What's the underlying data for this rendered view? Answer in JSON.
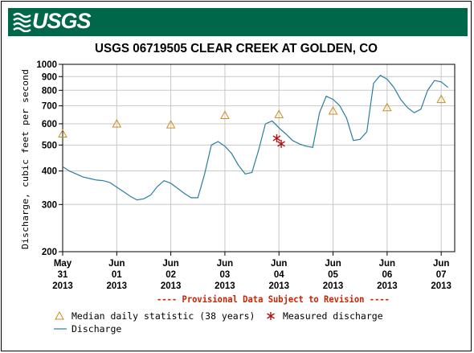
{
  "header": {
    "logo_text": "USGS",
    "banner_color": "#00684a"
  },
  "chart_data": {
    "type": "line",
    "title": "USGS 06719505 CLEAR CREEK AT GOLDEN, CO",
    "ylabel": "Discharge, cubic feet per second",
    "xlabel": "",
    "y_scale": "log",
    "ylim": [
      200,
      1000
    ],
    "y_ticks": [
      200,
      300,
      400,
      500,
      600,
      700,
      800,
      900,
      1000
    ],
    "y_tick_labels": [
      "200",
      "300",
      "400",
      "500",
      "600",
      "700",
      "800",
      "900",
      "1000"
    ],
    "xlim": [
      "2013-05-31 00:00",
      "2013-06-07 06:00"
    ],
    "x_ticks": [
      {
        "date": "2013-05-31",
        "label": [
          "May",
          "31",
          "2013"
        ]
      },
      {
        "date": "2013-06-01",
        "label": [
          "Jun",
          "01",
          "2013"
        ]
      },
      {
        "date": "2013-06-02",
        "label": [
          "Jun",
          "02",
          "2013"
        ]
      },
      {
        "date": "2013-06-03",
        "label": [
          "Jun",
          "03",
          "2013"
        ]
      },
      {
        "date": "2013-06-04",
        "label": [
          "Jun",
          "04",
          "2013"
        ]
      },
      {
        "date": "2013-06-05",
        "label": [
          "Jun",
          "05",
          "2013"
        ]
      },
      {
        "date": "2013-06-06",
        "label": [
          "Jun",
          "06",
          "2013"
        ]
      },
      {
        "date": "2013-06-07",
        "label": [
          "Jun",
          "07",
          "2013"
        ]
      }
    ],
    "grid": true,
    "provisional_note": "---- Provisional Data Subject to Revision ----",
    "colors": {
      "discharge": "#2a7ea0",
      "median": "#d08a20",
      "measured": "#b01010",
      "note": "#cc2200"
    },
    "series": [
      {
        "name": "Discharge",
        "type": "line",
        "points": [
          [
            "2013-05-30 21:00",
            430
          ],
          [
            "2013-05-31 00:00",
            415
          ],
          [
            "2013-05-31 03:00",
            400
          ],
          [
            "2013-05-31 06:00",
            390
          ],
          [
            "2013-05-31 09:00",
            380
          ],
          [
            "2013-05-31 12:00",
            375
          ],
          [
            "2013-05-31 15:00",
            370
          ],
          [
            "2013-05-31 18:00",
            368
          ],
          [
            "2013-05-31 21:00",
            362
          ],
          [
            "2013-06-01 00:00",
            348
          ],
          [
            "2013-06-01 03:00",
            335
          ],
          [
            "2013-06-01 06:00",
            322
          ],
          [
            "2013-06-01 09:00",
            312
          ],
          [
            "2013-06-01 12:00",
            315
          ],
          [
            "2013-06-01 15:00",
            325
          ],
          [
            "2013-06-01 18:00",
            350
          ],
          [
            "2013-06-01 21:00",
            368
          ],
          [
            "2013-06-02 00:00",
            360
          ],
          [
            "2013-06-02 03:00",
            345
          ],
          [
            "2013-06-02 06:00",
            330
          ],
          [
            "2013-06-02 09:00",
            318
          ],
          [
            "2013-06-02 12:00",
            318
          ],
          [
            "2013-06-02 15:00",
            390
          ],
          [
            "2013-06-02 18:00",
            500
          ],
          [
            "2013-06-02 21:00",
            515
          ],
          [
            "2013-06-03 00:00",
            495
          ],
          [
            "2013-06-03 03:00",
            465
          ],
          [
            "2013-06-03 06:00",
            420
          ],
          [
            "2013-06-03 09:00",
            390
          ],
          [
            "2013-06-03 12:00",
            395
          ],
          [
            "2013-06-03 15:00",
            480
          ],
          [
            "2013-06-03 18:00",
            600
          ],
          [
            "2013-06-03 21:00",
            615
          ],
          [
            "2013-06-04 00:00",
            580
          ],
          [
            "2013-06-04 03:00",
            550
          ],
          [
            "2013-06-04 06:00",
            520
          ],
          [
            "2013-06-04 09:00",
            505
          ],
          [
            "2013-06-04 12:00",
            495
          ],
          [
            "2013-06-04 15:00",
            490
          ],
          [
            "2013-06-04 18:00",
            660
          ],
          [
            "2013-06-04 21:00",
            760
          ],
          [
            "2013-06-05 00:00",
            740
          ],
          [
            "2013-06-05 03:00",
            700
          ],
          [
            "2013-06-05 06:00",
            630
          ],
          [
            "2013-06-05 09:00",
            520
          ],
          [
            "2013-06-05 12:00",
            525
          ],
          [
            "2013-06-05 15:00",
            560
          ],
          [
            "2013-06-05 18:00",
            850
          ],
          [
            "2013-06-05 21:00",
            910
          ],
          [
            "2013-06-06 00:00",
            880
          ],
          [
            "2013-06-06 03:00",
            820
          ],
          [
            "2013-06-06 06:00",
            740
          ],
          [
            "2013-06-06 09:00",
            690
          ],
          [
            "2013-06-06 12:00",
            660
          ],
          [
            "2013-06-06 15:00",
            680
          ],
          [
            "2013-06-06 18:00",
            800
          ],
          [
            "2013-06-06 21:00",
            870
          ],
          [
            "2013-06-07 00:00",
            860
          ],
          [
            "2013-06-07 03:00",
            820
          ]
        ]
      },
      {
        "name": "Median daily statistic (38 years)",
        "type": "triangle",
        "points": [
          [
            "2013-05-31 00:00",
            550
          ],
          [
            "2013-06-01 00:00",
            600
          ],
          [
            "2013-06-02 00:00",
            595
          ],
          [
            "2013-06-03 00:00",
            645
          ],
          [
            "2013-06-04 00:00",
            650
          ],
          [
            "2013-06-05 00:00",
            670
          ],
          [
            "2013-06-06 00:00",
            690
          ],
          [
            "2013-06-07 00:00",
            740
          ]
        ]
      },
      {
        "name": "Measured discharge",
        "type": "asterisk",
        "points": [
          [
            "2013-06-03 23:00",
            530
          ],
          [
            "2013-06-04 01:00",
            505
          ]
        ]
      }
    ],
    "legend": {
      "placement": "bottom-left",
      "items": [
        {
          "label": "Median daily statistic (38 years)",
          "symbol": "triangle"
        },
        {
          "label": "Measured discharge",
          "symbol": "asterisk"
        },
        {
          "label": "Discharge",
          "symbol": "line"
        }
      ]
    }
  }
}
